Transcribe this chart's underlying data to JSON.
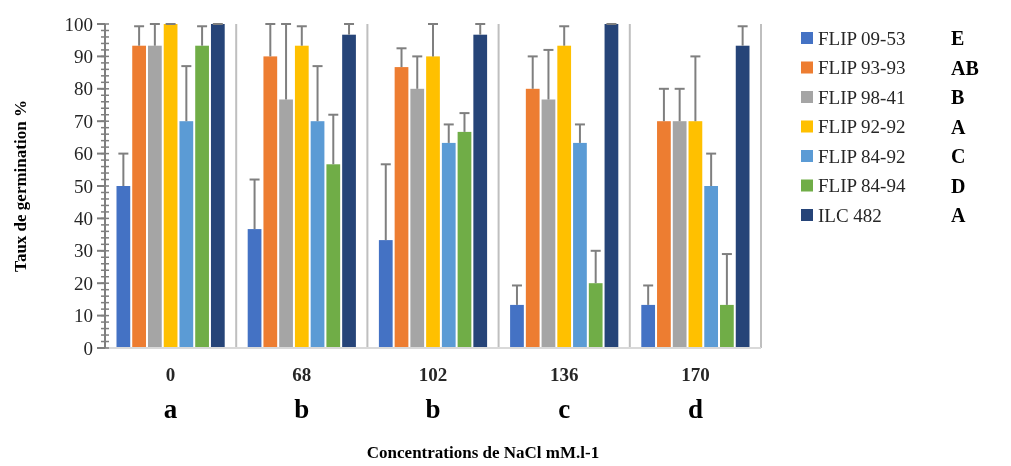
{
  "chart_data": {
    "type": "bar",
    "xlabel": "Concentrations de NaCl mM.l-1",
    "ylabel": "Taux de germination %",
    "categories": [
      "0",
      "68",
      "102",
      "136",
      "170"
    ],
    "series": [
      {
        "name": "FLIP 09-53",
        "color": "#4472c4",
        "values": [
          50,
          36.7,
          33.3,
          13.3,
          13.3
        ],
        "errors": [
          10,
          15.3,
          23.4,
          6,
          6
        ]
      },
      {
        "name": "FLIP 93-93",
        "color": "#ed7d31",
        "values": [
          93.3,
          90,
          86.7,
          80,
          70
        ],
        "errors": [
          6,
          10,
          5.8,
          10,
          10
        ]
      },
      {
        "name": "FLIP 98-41",
        "color": "#a5a5a5",
        "values": [
          93.3,
          76.7,
          80,
          76.7,
          70
        ],
        "errors": [
          6.7,
          23.3,
          10,
          15.3,
          10
        ]
      },
      {
        "name": "FLIP 92-92",
        "color": "#ffc000",
        "values": [
          100,
          93.3,
          90,
          93.3,
          70
        ],
        "errors": [
          0,
          6,
          10,
          6,
          20
        ]
      },
      {
        "name": "FLIP 84-92",
        "color": "#5b9bd5",
        "values": [
          70,
          70,
          63.3,
          63.3,
          50
        ],
        "errors": [
          17,
          17,
          5.7,
          5.7,
          10
        ]
      },
      {
        "name": "FLIP 84-94",
        "color": "#70ad47",
        "values": [
          93.3,
          56.7,
          66.7,
          20,
          13.3
        ],
        "errors": [
          6,
          15.3,
          5.8,
          10,
          15.7
        ]
      },
      {
        "name": "ILC 482",
        "color": "#264478",
        "values": [
          100,
          96.7,
          96.7,
          100,
          93.3
        ],
        "errors": [
          0,
          3.3,
          3.3,
          0,
          6
        ]
      }
    ],
    "annotations": [
      "a",
      "b",
      "b",
      "c",
      "d",
      "E",
      "AB",
      "B",
      "A",
      "C",
      "D",
      "A"
    ],
    "ylim": [
      0,
      100
    ],
    "yticks": [
      0,
      10,
      20,
      30,
      40,
      50,
      60,
      70,
      80,
      90,
      100
    ],
    "grid": "x",
    "legend": "right"
  }
}
